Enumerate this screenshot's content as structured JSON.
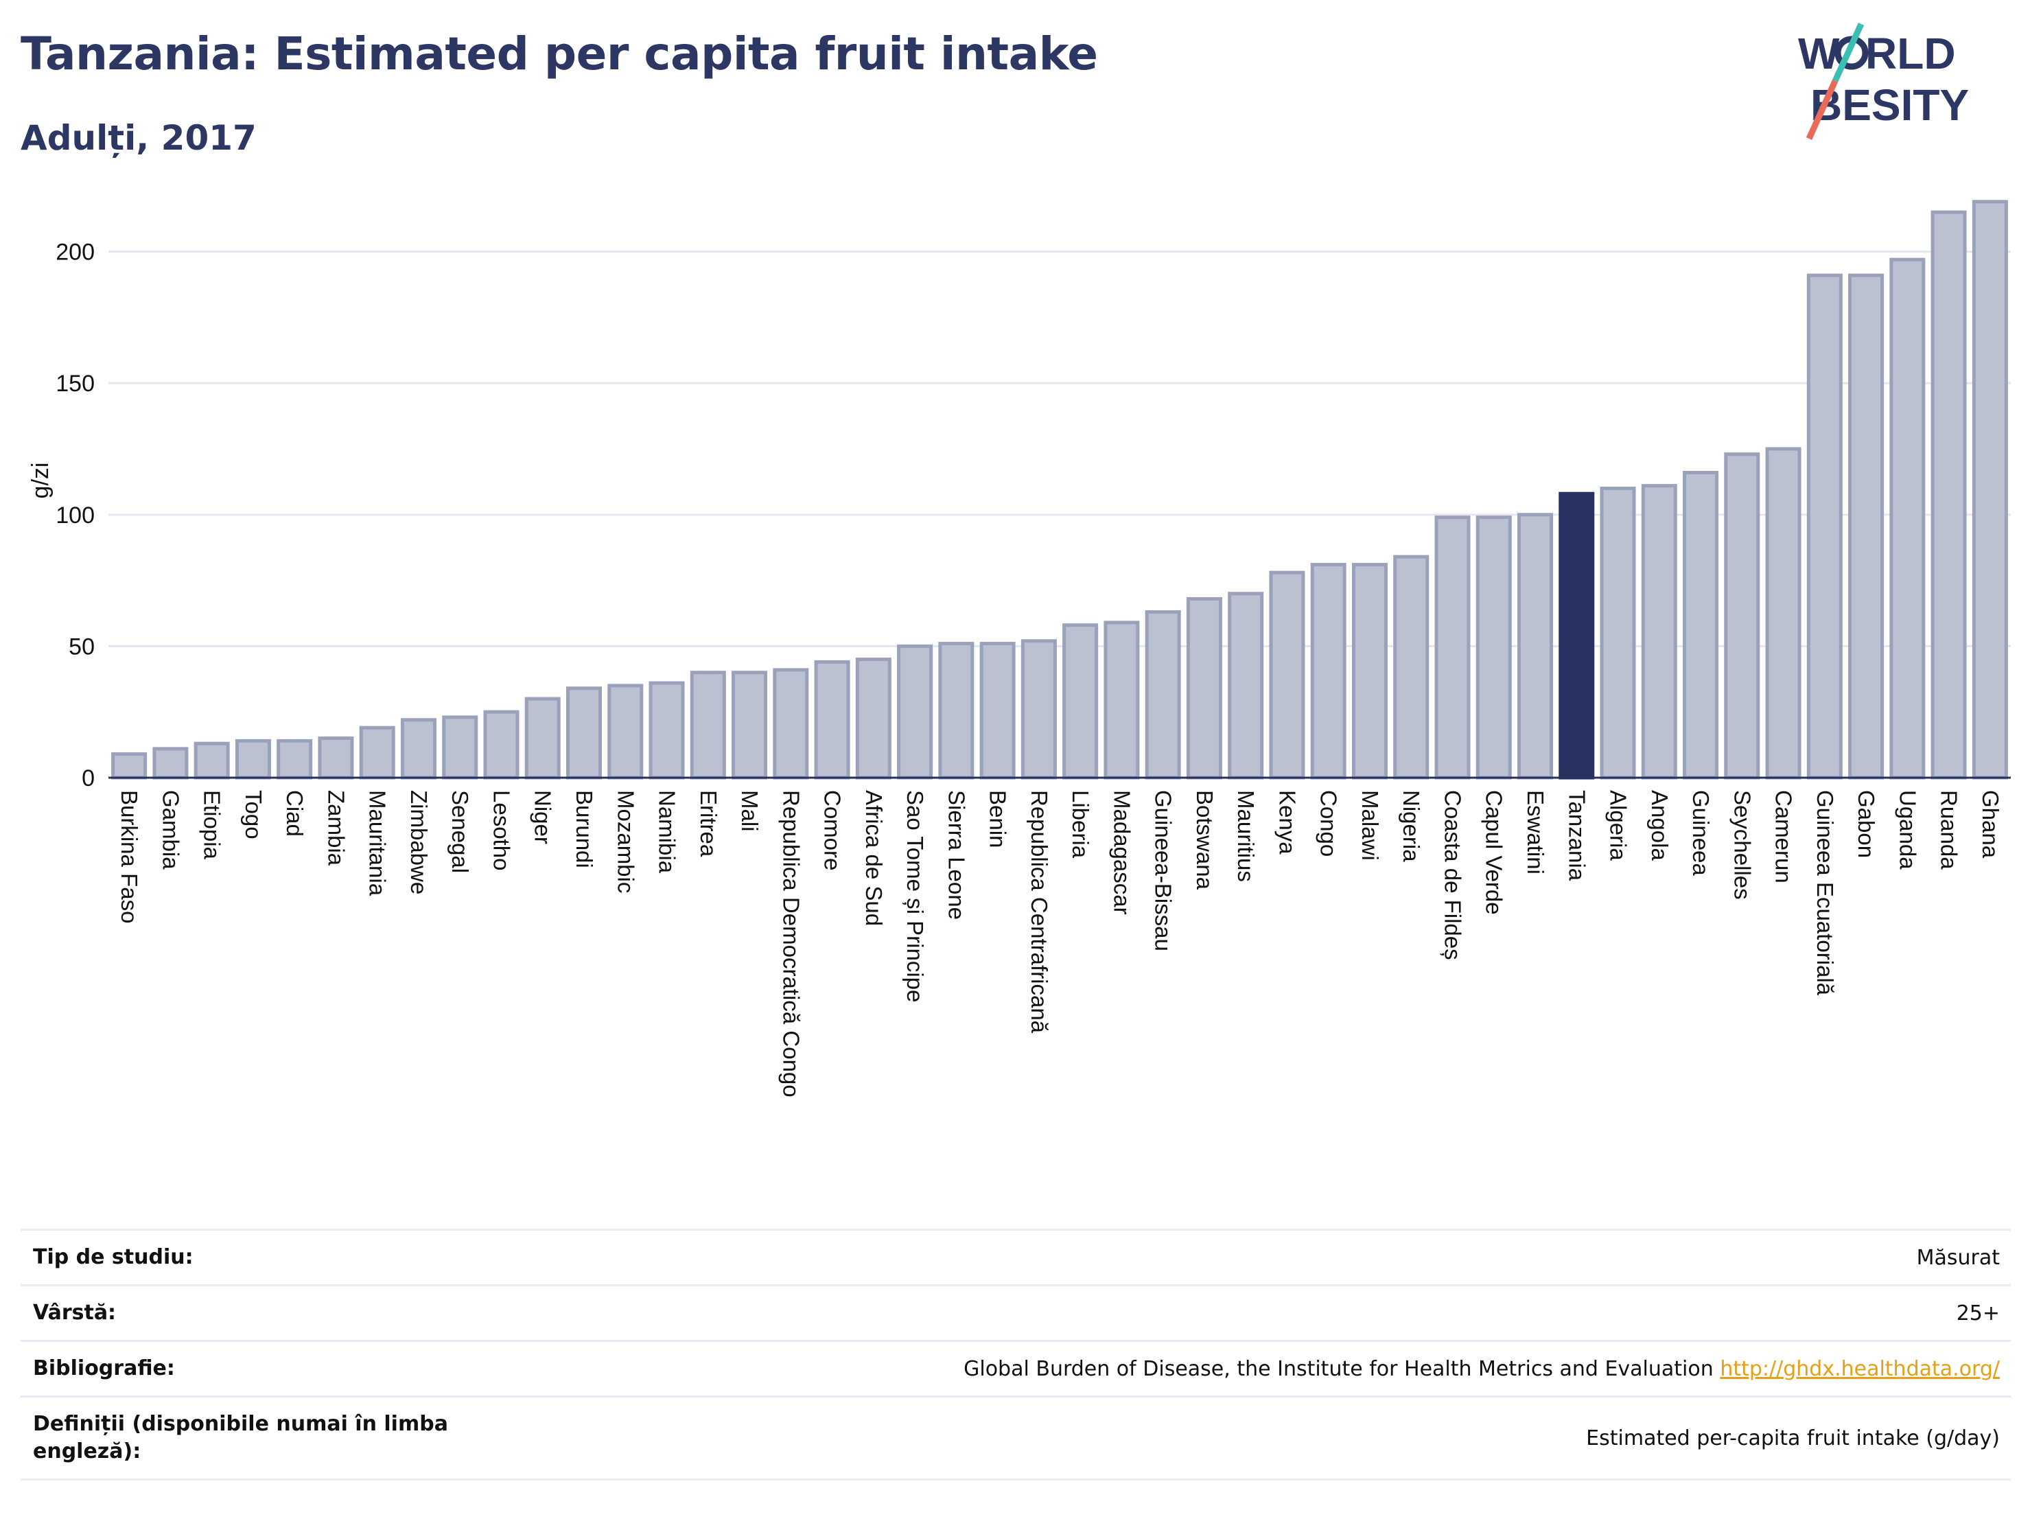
{
  "header": {
    "title": "Tanzania: Estimated per capita fruit intake",
    "subtitle": "Adulți, 2017"
  },
  "logo": {
    "line1": "W RLD",
    "line2": "BESITY",
    "text": "WORLD OBESITY"
  },
  "colors": {
    "bar": "#bcc1d1",
    "bar_border": "#9aa1ba",
    "highlight": "#283260",
    "grid": "#e3e6ee",
    "axis": "#283260",
    "link": "#e6a016"
  },
  "chart_data": {
    "type": "bar",
    "title": "Tanzania: Estimated per capita fruit intake",
    "subtitle": "Adulți, 2017",
    "ylabel": "g/zi",
    "xlabel": "",
    "ylim": [
      0,
      220
    ],
    "yticks": [
      0,
      50,
      100,
      150,
      200
    ],
    "grid": true,
    "highlight": "Tanzania",
    "categories": [
      "Burkina Faso",
      "Gambia",
      "Etiopia",
      "Togo",
      "Ciad",
      "Zambia",
      "Mauritania",
      "Zimbabwe",
      "Senegal",
      "Lesotho",
      "Niger",
      "Burundi",
      "Mozambic",
      "Namibia",
      "Eritrea",
      "Mali",
      "Republica Democratică Congo",
      "Comore",
      "Africa de Sud",
      "Sao Tome și Principe",
      "Sierra Leone",
      "Benin",
      "Republica Centrafricană",
      "Liberia",
      "Madagascar",
      "Guineea-Bissau",
      "Botswana",
      "Mauritius",
      "Kenya",
      "Congo",
      "Malawi",
      "Nigeria",
      "Coasta de Fildeș",
      "Capul Verde",
      "Eswatini",
      "Tanzania",
      "Algeria",
      "Angola",
      "Guineea",
      "Seychelles",
      "Camerun",
      "Guineea Ecuatorială",
      "Gabon",
      "Uganda",
      "Ruanda",
      "Ghana"
    ],
    "values": [
      9,
      11,
      13,
      14,
      14,
      15,
      19,
      22,
      23,
      25,
      30,
      34,
      35,
      36,
      40,
      40,
      41,
      44,
      45,
      50,
      51,
      51,
      52,
      58,
      59,
      63,
      68,
      70,
      78,
      81,
      81,
      84,
      99,
      99,
      100,
      108,
      110,
      111,
      116,
      123,
      125,
      191,
      191,
      197,
      215,
      219
    ]
  },
  "meta": {
    "rows": [
      {
        "label": "Tip de studiu:",
        "value": "Măsurat"
      },
      {
        "label": "Vârstă:",
        "value": "25+"
      },
      {
        "label": "Bibliografie:",
        "value": "Global Burden of Disease, the Institute for Health Metrics and Evaluation",
        "link": "http://ghdx.healthdata.org/"
      },
      {
        "label": "Definiții (disponibile numai în limba engleză):",
        "value": "Estimated per-capita fruit intake (g/day)"
      }
    ]
  }
}
